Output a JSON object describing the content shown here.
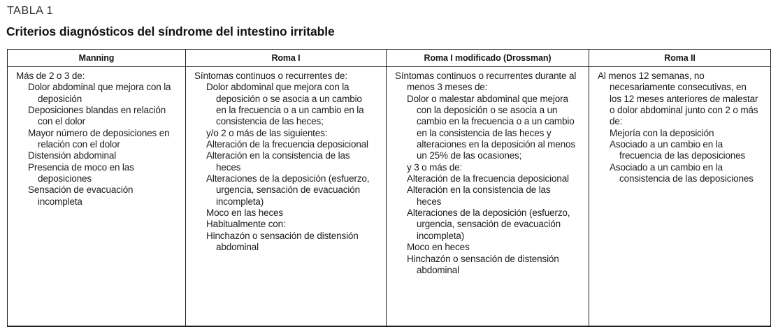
{
  "page": {
    "label": "TABLA 1",
    "title": "Criterios diagnósticos del síndrome del intestino irritable"
  },
  "table": {
    "columns": [
      {
        "header": "Manning",
        "entries": [
          {
            "indent": 0,
            "text": "Más de 2 o 3 de:"
          },
          {
            "indent": 1,
            "text": "Dolor abdominal que mejora con la deposición"
          },
          {
            "indent": 1,
            "text": "Deposiciones blandas en relación con el dolor"
          },
          {
            "indent": 1,
            "text": "Mayor número de deposiciones en relación con el dolor"
          },
          {
            "indent": 1,
            "text": "Distensión abdominal"
          },
          {
            "indent": 1,
            "text": "Presencia de moco en las deposiciones"
          },
          {
            "indent": 1,
            "text": "Sensación de evacuación incompleta"
          }
        ]
      },
      {
        "header": "Roma I",
        "entries": [
          {
            "indent": 0,
            "text": "Síntomas continuos o recurrentes de:"
          },
          {
            "indent": 1,
            "text": "Dolor abdominal que mejora con la deposición o se asocia a un cambio en la frecuencia o a un cambio en la consistencia de las heces;"
          },
          {
            "indent": 1,
            "text": "y/o 2 o más de las siguientes:"
          },
          {
            "indent": 1,
            "text": "Alteración de la frecuencia deposicional"
          },
          {
            "indent": 1,
            "text": "Alteración en la consistencia de las heces"
          },
          {
            "indent": 1,
            "text": "Alteraciones de la deposición (esfuerzo, urgencia, sensación de evacuación incompleta)"
          },
          {
            "indent": 1,
            "text": "Moco en las heces"
          },
          {
            "indent": 1,
            "text": "Habitualmente con:"
          },
          {
            "indent": 1,
            "text": "Hinchazón o sensación de distensión abdominal"
          }
        ]
      },
      {
        "header": "Roma I modificado (Drossman)",
        "entries": [
          {
            "indent": 0,
            "text": "Síntomas continuos o recurrentes durante al menos 3 meses de:"
          },
          {
            "indent": 1,
            "text": "Dolor o malestar abdominal que mejora con la deposición o se asocia a un cambio en la frecuencia o a un cambio en la consistencia de las heces y alteraciones en la deposición al menos un 25% de las ocasiones;"
          },
          {
            "indent": 1,
            "text": "y 3 o más de:"
          },
          {
            "indent": 1,
            "text": "Alteración de la frecuencia deposicional"
          },
          {
            "indent": 1,
            "text": "Alteración en la consistencia de las heces"
          },
          {
            "indent": 1,
            "text": "Alteraciones de la deposición (esfuerzo, urgencia, sensación de evacuación incompleta)"
          },
          {
            "indent": 1,
            "text": "Moco en heces"
          },
          {
            "indent": 1,
            "text": "Hinchazón o sensación de distensión abdominal"
          }
        ]
      },
      {
        "header": "Roma II",
        "entries": [
          {
            "indent": 0,
            "text": "Al menos 12 semanas, no necesariamente consecutivas, en los 12 meses anteriores de malestar o dolor abdominal junto con 2 o más de:"
          },
          {
            "indent": 1,
            "text": "Mejoría con la deposición"
          },
          {
            "indent": 1,
            "text": "Asociado a un cambio en la frecuencia de las deposiciones"
          },
          {
            "indent": 1,
            "text": "Asociado a un cambio en la consistencia de las deposiciones"
          }
        ]
      }
    ]
  },
  "colors": {
    "text": "#1c1c1c",
    "border": "#1f1f1f",
    "background": "#ffffff"
  }
}
